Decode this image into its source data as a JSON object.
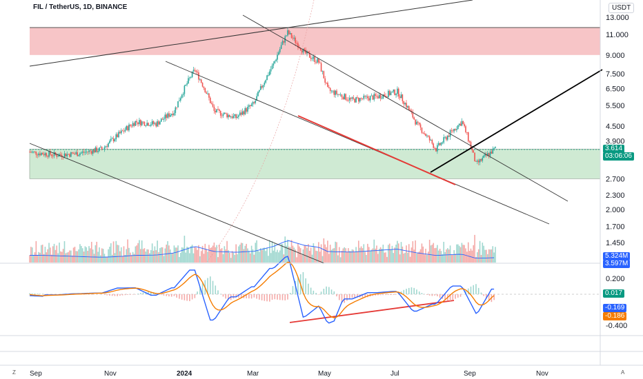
{
  "header": {
    "title": "FIL / TetherUS, 1D, BINANCE",
    "currency": "USDT"
  },
  "colors": {
    "up": "#26a69a",
    "down": "#ef5350",
    "resistance_zone": "#f7c5c7",
    "support_zone": "#cfead3",
    "trendline": "#333333",
    "red_line": "#e53935",
    "macd_line": "#2962ff",
    "signal_line": "#f57c00",
    "price_badge": "#089981",
    "volume_badge": "#2962ff",
    "macd_badge": "#089981",
    "neg_badge_1": "#2962ff",
    "neg_badge_2": "#f57c00"
  },
  "chart_data": {
    "type": "candlestick",
    "symbol": "FIL / TetherUS",
    "interval": "1D",
    "exchange": "BINANCE",
    "y_scale": "log",
    "y_ticks": [
      "13.000",
      "11.000",
      "9.000",
      "7.500",
      "6.500",
      "5.500",
      "4.500",
      "3.900",
      "2.700",
      "2.300",
      "2.000",
      "1.700",
      "1.450"
    ],
    "x_ticks": [
      {
        "label": "Sep",
        "bold": false
      },
      {
        "label": "Nov",
        "bold": false
      },
      {
        "label": "2024",
        "bold": true
      },
      {
        "label": "Mar",
        "bold": false
      },
      {
        "label": "May",
        "bold": false
      },
      {
        "label": "Jul",
        "bold": false
      },
      {
        "label": "Sep",
        "bold": false
      },
      {
        "label": "Nov",
        "bold": false
      }
    ],
    "price_path": [
      [
        "2023-08-25",
        3.5
      ],
      [
        "2023-09-15",
        3.4
      ],
      [
        "2023-10-01",
        3.45
      ],
      [
        "2023-10-20",
        3.6
      ],
      [
        "2023-11-01",
        4.1
      ],
      [
        "2023-11-15",
        4.7
      ],
      [
        "2023-12-01",
        4.6
      ],
      [
        "2023-12-15",
        5.2
      ],
      [
        "2023-12-31",
        7.8
      ],
      [
        "2024-01-15",
        5.2
      ],
      [
        "2024-02-01",
        4.9
      ],
      [
        "2024-02-15",
        5.6
      ],
      [
        "2024-03-01",
        8.2
      ],
      [
        "2024-03-12",
        11.2
      ],
      [
        "2024-03-25",
        9.2
      ],
      [
        "2024-04-05",
        8.4
      ],
      [
        "2024-04-12",
        6.4
      ],
      [
        "2024-05-01",
        5.8
      ],
      [
        "2024-05-20",
        6.0
      ],
      [
        "2024-06-05",
        6.3
      ],
      [
        "2024-06-20",
        4.6
      ],
      [
        "2024-07-05",
        3.6
      ],
      [
        "2024-07-25",
        4.7
      ],
      [
        "2024-08-05",
        3.1
      ],
      [
        "2024-08-20",
        3.614
      ]
    ],
    "last_price": "3.614",
    "countdown": "03:06:06",
    "resistance_zone": [
      9.0,
      11.8
    ],
    "support_zone": [
      2.7,
      3.6
    ],
    "volume": {
      "value": "5.324M",
      "ma": "3.597M"
    },
    "macd": {
      "hist": "0.017",
      "macd": "-0.169",
      "signal": "-0.186",
      "ticks": [
        "0.200",
        "-0.400"
      ]
    }
  },
  "footer": {
    "left_icon": "Z",
    "right_icon": "A"
  }
}
